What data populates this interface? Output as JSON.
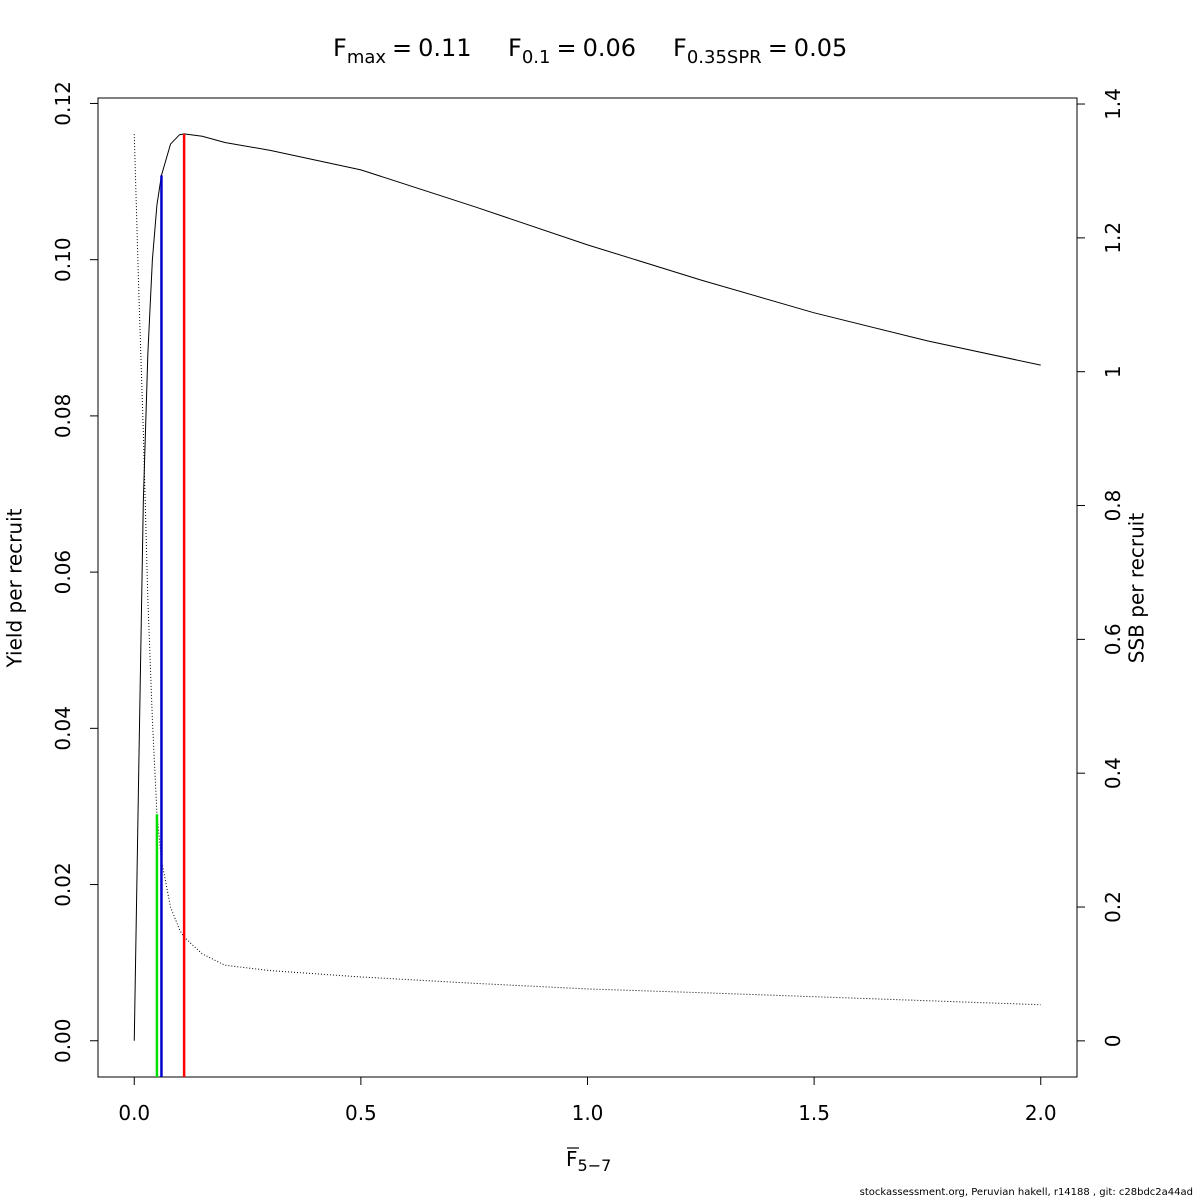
{
  "chart_data": {
    "type": "line",
    "relation": "=",
    "reference_lines": [
      {
        "symbol": "F",
        "sub": "max",
        "x": 0.11,
        "y": 0.1161,
        "color": "#ff0000"
      },
      {
        "symbol": "F",
        "sub": "0.1",
        "x": 0.06,
        "y": 0.1108,
        "color": "#0000cd"
      },
      {
        "symbol": "F",
        "sub": "0.35SPR",
        "x": 0.05,
        "y": 0.029,
        "color": "#00e000"
      }
    ],
    "xlabel": {
      "symbol": "F",
      "sub": "5−7"
    },
    "ylabel": "Yield per recruit",
    "y2label": "SSB per recruit",
    "footer": "stockassessment.org, Peruvian  hakell, r14188 , git: c28bdc2a44ad",
    "x": [
      0,
      0.01,
      0.02,
      0.03,
      0.04,
      0.05,
      0.06,
      0.08,
      0.1,
      0.11,
      0.15,
      0.2,
      0.3,
      0.5,
      0.75,
      1,
      1.25,
      1.5,
      1.75,
      2
    ],
    "series": [
      {
        "color": "#000000",
        "dash": "solid",
        "axis": "y",
        "values": [
          0,
          0.035,
          0.069,
          0.088,
          0.1,
          0.107,
          0.1108,
          0.1148,
          0.116,
          0.1161,
          0.1158,
          0.115,
          0.114,
          0.1115,
          0.1068,
          0.1019,
          0.0974,
          0.0932,
          0.0896,
          0.0865
        ]
      },
      {
        "color": "#000000",
        "dash": "dotted",
        "axis": "y2",
        "values": [
          1.355,
          1.12,
          0.91,
          0.66,
          0.48,
          0.34,
          0.27,
          0.2,
          0.166,
          0.155,
          0.13,
          0.113,
          0.105,
          0.0955,
          0.086,
          0.0776,
          0.072,
          0.066,
          0.06,
          0.054
        ]
      }
    ],
    "xlim": [
      -0.08,
      2.08
    ],
    "ylim": [
      -0.00464,
      0.1207
    ],
    "y2lim": [
      -0.054,
      1.409
    ],
    "xticks": [
      {
        "value": 0,
        "label": "0.0"
      },
      {
        "value": 0.5,
        "label": "0.5"
      },
      {
        "value": 1,
        "label": "1.0"
      },
      {
        "value": 1.5,
        "label": "1.5"
      },
      {
        "value": 2,
        "label": "2.0"
      }
    ],
    "yticks": [
      {
        "value": 0,
        "label": "0.00"
      },
      {
        "value": 0.02,
        "label": "0.02"
      },
      {
        "value": 0.04,
        "label": "0.04"
      },
      {
        "value": 0.06,
        "label": "0.06"
      },
      {
        "value": 0.08,
        "label": "0.08"
      },
      {
        "value": 0.1,
        "label": "0.10"
      },
      {
        "value": 0.12,
        "label": "0.12"
      }
    ],
    "y2ticks": [
      0,
      0.2,
      0.4,
      0.6,
      0.8,
      1,
      1.2,
      1.4
    ]
  }
}
